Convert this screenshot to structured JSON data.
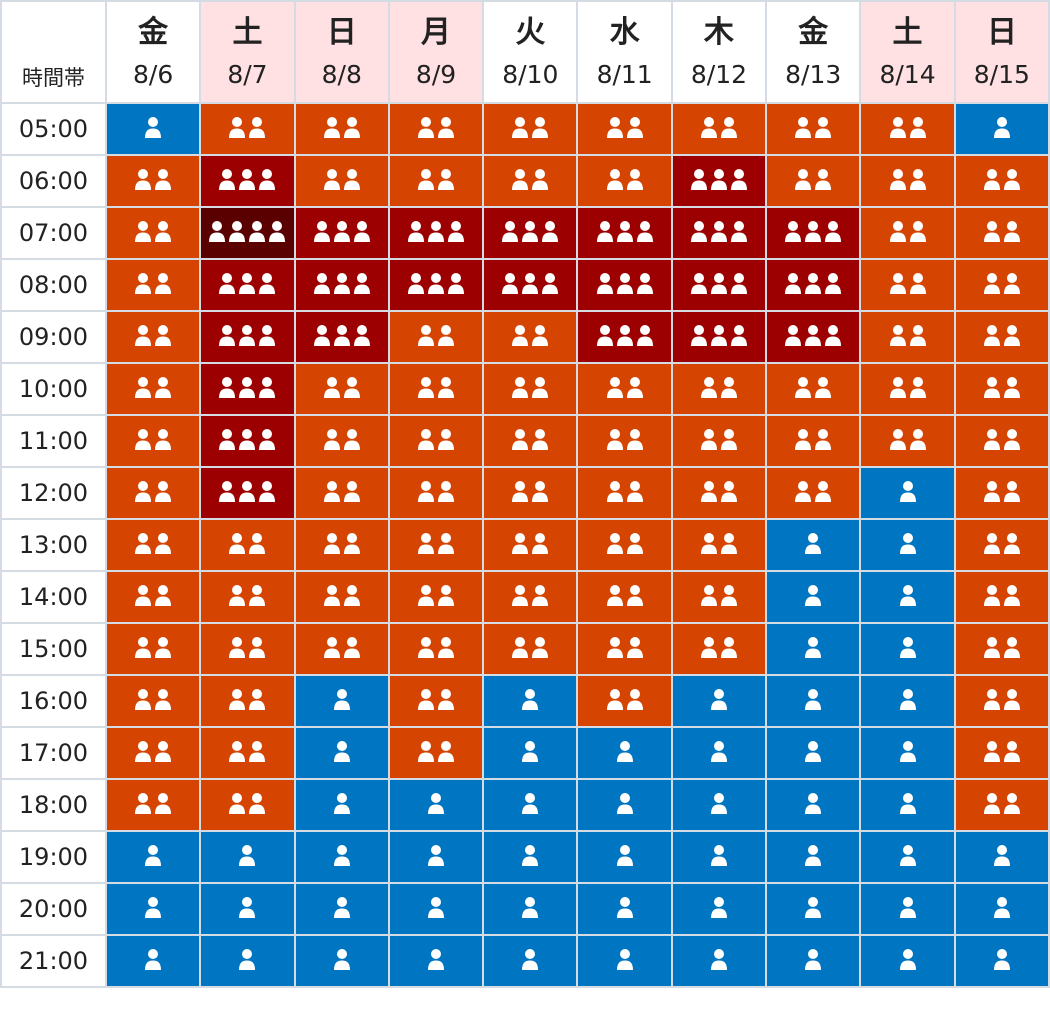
{
  "header": {
    "corner_label": "時間帯",
    "days": [
      {
        "dow": "金",
        "date": "8/6",
        "weekend": false
      },
      {
        "dow": "土",
        "date": "8/7",
        "weekend": true
      },
      {
        "dow": "日",
        "date": "8/8",
        "weekend": true
      },
      {
        "dow": "月",
        "date": "8/9",
        "weekend": true
      },
      {
        "dow": "火",
        "date": "8/10",
        "weekend": false
      },
      {
        "dow": "水",
        "date": "8/11",
        "weekend": false
      },
      {
        "dow": "木",
        "date": "8/12",
        "weekend": false
      },
      {
        "dow": "金",
        "date": "8/13",
        "weekend": false
      },
      {
        "dow": "土",
        "date": "8/14",
        "weekend": true
      },
      {
        "dow": "日",
        "date": "8/15",
        "weekend": true
      }
    ]
  },
  "level_colors": {
    "1": "#0075c2",
    "2": "#d54400",
    "3": "#9d0000",
    "4": "#5a0000"
  },
  "icon": "person-icon",
  "rows": [
    {
      "time": "05:00",
      "levels": [
        1,
        2,
        2,
        2,
        2,
        2,
        2,
        2,
        2,
        1
      ]
    },
    {
      "time": "06:00",
      "levels": [
        2,
        3,
        2,
        2,
        2,
        2,
        3,
        2,
        2,
        2
      ]
    },
    {
      "time": "07:00",
      "levels": [
        2,
        4,
        3,
        3,
        3,
        3,
        3,
        3,
        2,
        2
      ]
    },
    {
      "time": "08:00",
      "levels": [
        2,
        3,
        3,
        3,
        3,
        3,
        3,
        3,
        2,
        2
      ]
    },
    {
      "time": "09:00",
      "levels": [
        2,
        3,
        3,
        2,
        2,
        3,
        3,
        3,
        2,
        2
      ]
    },
    {
      "time": "10:00",
      "levels": [
        2,
        3,
        2,
        2,
        2,
        2,
        2,
        2,
        2,
        2
      ]
    },
    {
      "time": "11:00",
      "levels": [
        2,
        3,
        2,
        2,
        2,
        2,
        2,
        2,
        2,
        2
      ]
    },
    {
      "time": "12:00",
      "levels": [
        2,
        3,
        2,
        2,
        2,
        2,
        2,
        2,
        1,
        2
      ]
    },
    {
      "time": "13:00",
      "levels": [
        2,
        2,
        2,
        2,
        2,
        2,
        2,
        1,
        1,
        2
      ]
    },
    {
      "time": "14:00",
      "levels": [
        2,
        2,
        2,
        2,
        2,
        2,
        2,
        1,
        1,
        2
      ]
    },
    {
      "time": "15:00",
      "levels": [
        2,
        2,
        2,
        2,
        2,
        2,
        2,
        1,
        1,
        2
      ]
    },
    {
      "time": "16:00",
      "levels": [
        2,
        2,
        1,
        2,
        1,
        2,
        1,
        1,
        1,
        2
      ]
    },
    {
      "time": "17:00",
      "levels": [
        2,
        2,
        1,
        2,
        1,
        1,
        1,
        1,
        1,
        2
      ]
    },
    {
      "time": "18:00",
      "levels": [
        2,
        2,
        1,
        1,
        1,
        1,
        1,
        1,
        1,
        2
      ]
    },
    {
      "time": "19:00",
      "levels": [
        1,
        1,
        1,
        1,
        1,
        1,
        1,
        1,
        1,
        1
      ]
    },
    {
      "time": "20:00",
      "levels": [
        1,
        1,
        1,
        1,
        1,
        1,
        1,
        1,
        1,
        1
      ]
    },
    {
      "time": "21:00",
      "levels": [
        1,
        1,
        1,
        1,
        1,
        1,
        1,
        1,
        1,
        1
      ]
    }
  ]
}
